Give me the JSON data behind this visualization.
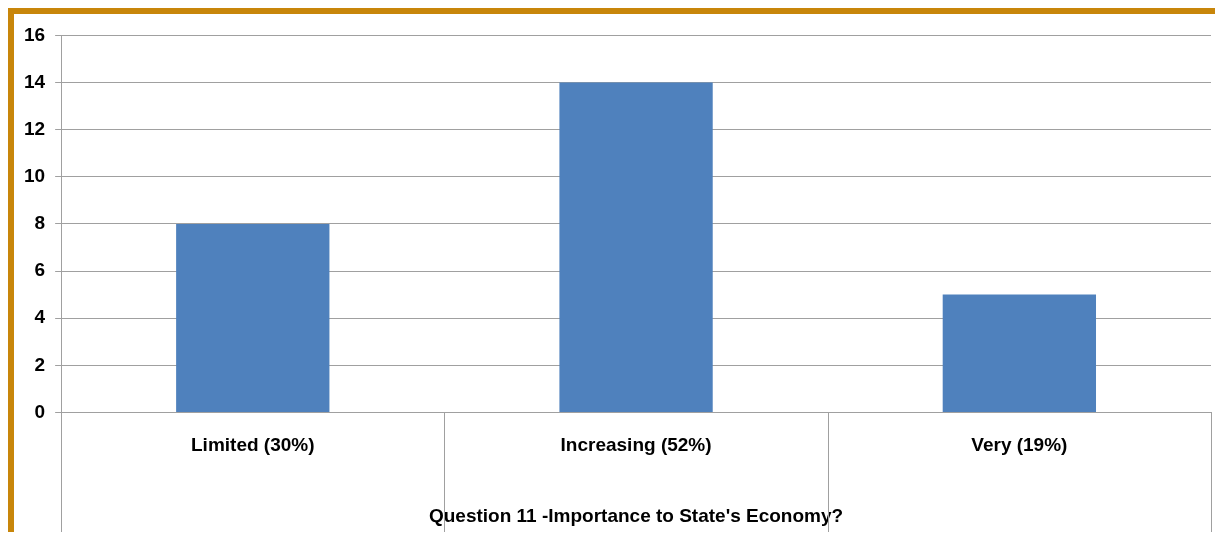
{
  "chart_data": {
    "type": "bar",
    "xlabel": "Question 11 -Importance to State's Economy?",
    "categories": [
      "Limited (30%)",
      "Increasing (52%)",
      "Very (19%)"
    ],
    "values": [
      8,
      14,
      5
    ],
    "color": "#4f81bd",
    "ylim": [
      0,
      16
    ],
    "yticks": [
      0,
      2,
      4,
      6,
      8,
      10,
      12,
      14,
      16
    ],
    "grid": "y",
    "legend": false
  }
}
